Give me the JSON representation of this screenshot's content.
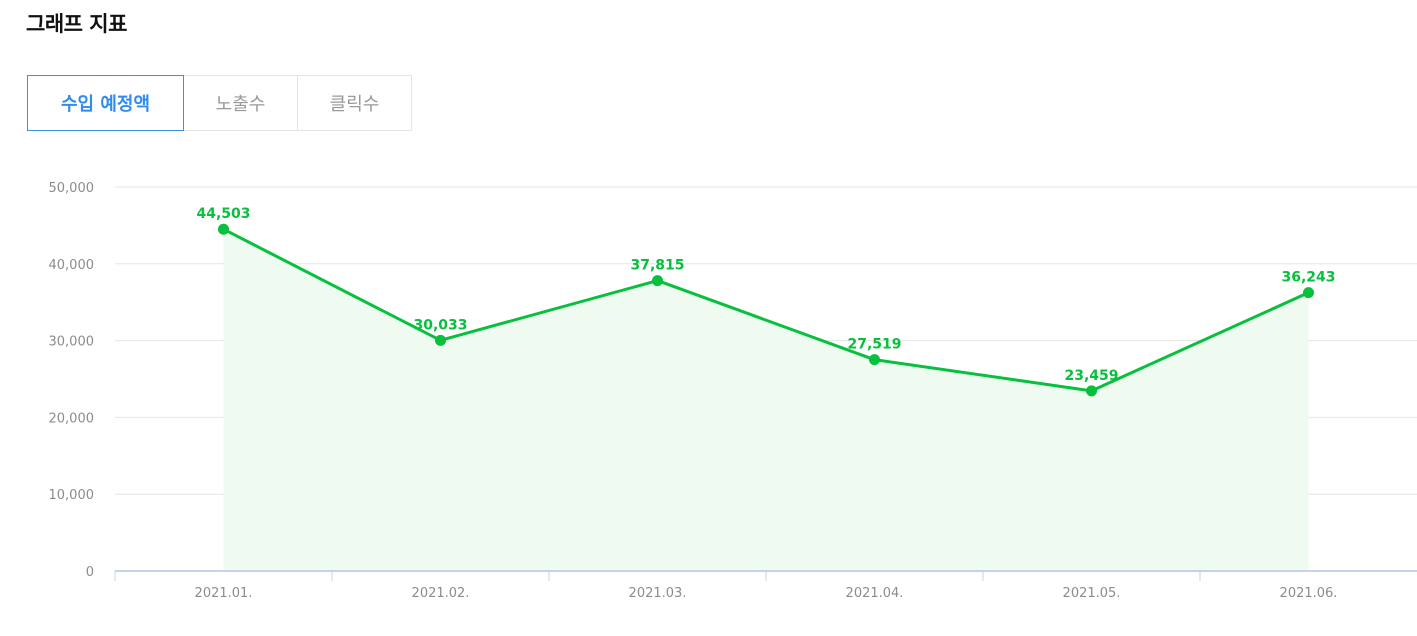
{
  "header": {
    "title": "그래프 지표"
  },
  "tabs": [
    {
      "label": "수입 예정액",
      "active": true
    },
    {
      "label": "노출수",
      "active": false
    },
    {
      "label": "클릭수",
      "active": false
    }
  ],
  "colors": {
    "line": "#07c03d",
    "area": "#effaf1",
    "active_tab": "#2f8cf0",
    "grid": "#e6e6e6",
    "axis": "#c5d3e8"
  },
  "chart_data": {
    "type": "area",
    "categories": [
      "2021.01.",
      "2021.02.",
      "2021.03.",
      "2021.04.",
      "2021.05.",
      "2021.06."
    ],
    "series": [
      {
        "values": [
          44503,
          30033,
          37815,
          27519,
          23459,
          36243
        ]
      }
    ],
    "data_labels": [
      "44,503",
      "30,033",
      "37,815",
      "27,519",
      "23,459",
      "36,243"
    ],
    "y_ticks": [
      0,
      10000,
      20000,
      30000,
      40000,
      50000
    ],
    "y_tick_labels": [
      "0",
      "10,000",
      "20,000",
      "30,000",
      "40,000",
      "50,000"
    ],
    "ylim": [
      0,
      50000
    ],
    "grid": true,
    "legend": "none",
    "title": "",
    "xlabel": "",
    "ylabel": ""
  }
}
